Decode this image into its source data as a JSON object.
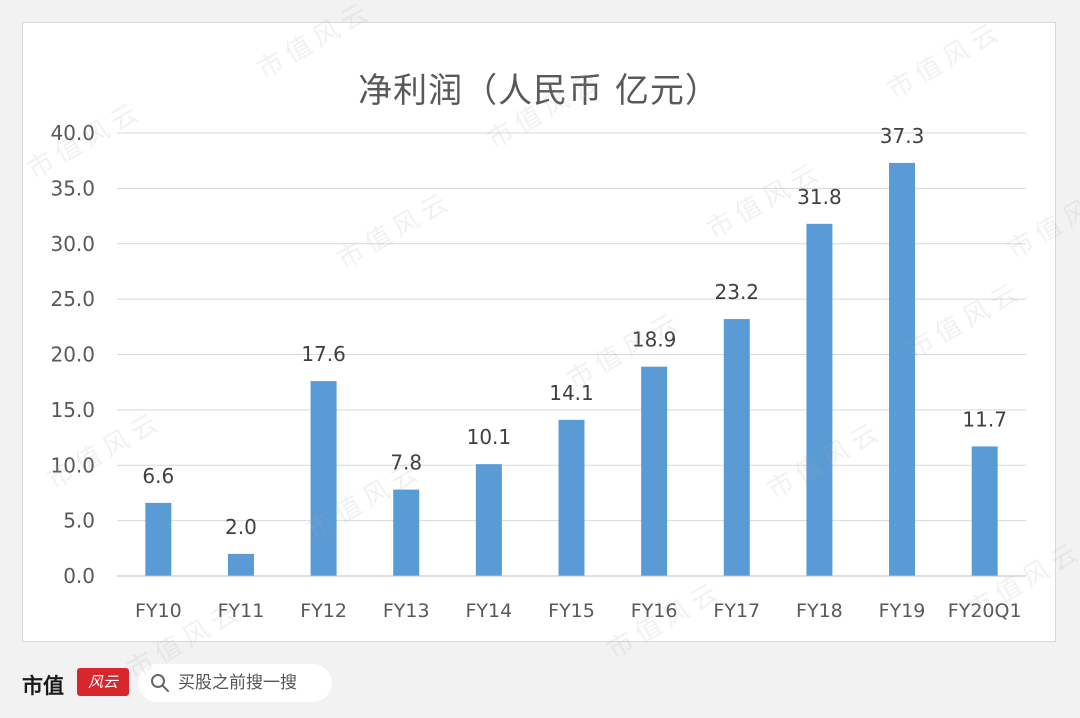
{
  "chart_data": {
    "type": "bar",
    "title": "净利润（人民币 亿元）",
    "categories": [
      "FY10",
      "FY11",
      "FY12",
      "FY13",
      "FY14",
      "FY15",
      "FY16",
      "FY17",
      "FY18",
      "FY19",
      "FY20Q1"
    ],
    "values": [
      6.6,
      2.0,
      17.6,
      7.8,
      10.1,
      14.1,
      18.9,
      23.2,
      31.8,
      37.3,
      11.7
    ],
    "data_labels": [
      "6.6",
      "2.0",
      "17.6",
      "7.8",
      "10.1",
      "14.1",
      "18.9",
      "23.2",
      "31.8",
      "37.3",
      "11.7"
    ],
    "y_ticks": [
      "0.0",
      "5.0",
      "10.0",
      "15.0",
      "20.0",
      "25.0",
      "30.0",
      "35.0",
      "40.0"
    ],
    "ylim": [
      0,
      40
    ],
    "grid": true,
    "bar_color": "#5b9bd5",
    "xlabel": "",
    "ylabel": ""
  },
  "footer": {
    "brand": "市值",
    "brand_logo_text": "风云",
    "search_placeholder": "买股之前搜一搜",
    "accent_color": "#d8262d"
  },
  "watermark": "市值风云"
}
